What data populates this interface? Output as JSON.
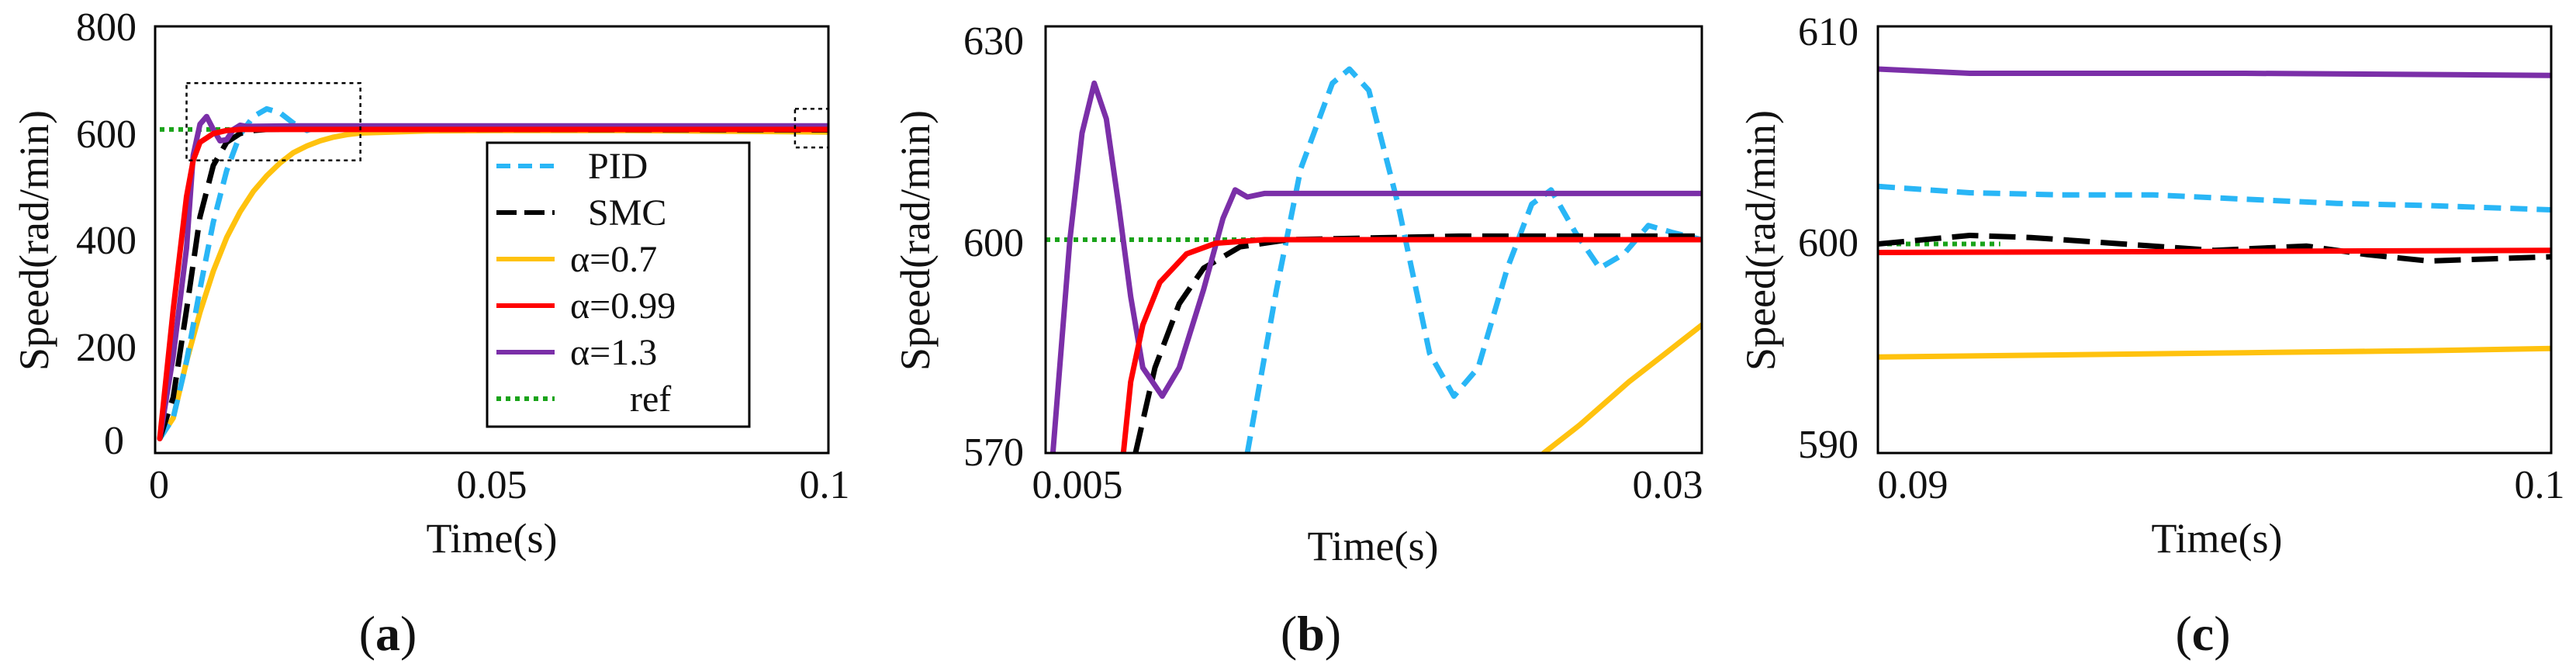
{
  "colors": {
    "PID": "#29B6F6",
    "SMC": "#000000",
    "a07": "#FFC20E",
    "a099": "#FF0000",
    "a13": "#7B2FA8",
    "ref": "#1AA31A"
  },
  "chart_data": [
    {
      "type": "line",
      "panel_label": "a",
      "xlabel": "Time(s)",
      "ylabel": "Speed(rad/min)",
      "xlim": [
        0,
        0.1
      ],
      "ylim": [
        0,
        800
      ],
      "xticks": [
        "0",
        "0.05",
        "0.1"
      ],
      "yticks": [
        "0",
        "200",
        "400",
        "600",
        "800"
      ],
      "legend_position": "center-right",
      "series": [
        {
          "name": "PID",
          "style": "dash",
          "color_key": "PID",
          "points": [
            [
              0,
              0
            ],
            [
              0.002,
              40
            ],
            [
              0.004,
              150
            ],
            [
              0.006,
              290
            ],
            [
              0.008,
              420
            ],
            [
              0.01,
              520
            ],
            [
              0.012,
              590
            ],
            [
              0.014,
              625
            ],
            [
              0.016,
              640
            ],
            [
              0.018,
              632
            ],
            [
              0.02,
              612
            ],
            [
              0.022,
              598
            ],
            [
              0.024,
              607
            ],
            [
              0.026,
              606
            ],
            [
              0.03,
              604
            ],
            [
              0.04,
              603
            ],
            [
              0.06,
              603
            ],
            [
              0.08,
              602
            ],
            [
              0.1,
              601
            ]
          ]
        },
        {
          "name": "SMC",
          "style": "longdash",
          "color_key": "SMC",
          "points": [
            [
              0,
              0
            ],
            [
              0.002,
              80
            ],
            [
              0.004,
              250
            ],
            [
              0.006,
              430
            ],
            [
              0.008,
              530
            ],
            [
              0.01,
              575
            ],
            [
              0.012,
              592
            ],
            [
              0.014,
              598
            ],
            [
              0.016,
              600
            ],
            [
              0.02,
              601
            ],
            [
              0.05,
              600
            ],
            [
              0.1,
              599
            ]
          ]
        },
        {
          "name": "α=0.7",
          "style": "solid",
          "color_key": "a07",
          "points": [
            [
              0,
              0
            ],
            [
              0.002,
              40
            ],
            [
              0.004,
              150
            ],
            [
              0.006,
              245
            ],
            [
              0.008,
              325
            ],
            [
              0.01,
              390
            ],
            [
              0.012,
              440
            ],
            [
              0.014,
              480
            ],
            [
              0.016,
              510
            ],
            [
              0.018,
              535
            ],
            [
              0.02,
              555
            ],
            [
              0.022,
              568
            ],
            [
              0.024,
              578
            ],
            [
              0.026,
              585
            ],
            [
              0.028,
              590
            ],
            [
              0.03,
              593
            ],
            [
              0.04,
              597
            ],
            [
              0.05,
              598
            ],
            [
              0.07,
              598
            ],
            [
              0.1,
              595
            ]
          ]
        },
        {
          "name": "α=0.99",
          "style": "solid",
          "color_key": "a099",
          "points": [
            [
              0,
              0
            ],
            [
              0.002,
              250
            ],
            [
              0.004,
              470
            ],
            [
              0.005,
              540
            ],
            [
              0.006,
              575
            ],
            [
              0.008,
              592
            ],
            [
              0.01,
              598
            ],
            [
              0.012,
              600
            ],
            [
              0.02,
              600
            ],
            [
              0.05,
              600
            ],
            [
              0.1,
              600
            ]
          ]
        },
        {
          "name": "α=1.3",
          "style": "solid",
          "color_key": "a13",
          "points": [
            [
              0,
              0
            ],
            [
              0.002,
              160
            ],
            [
              0.004,
              370
            ],
            [
              0.005,
              550
            ],
            [
              0.006,
              610
            ],
            [
              0.007,
              625
            ],
            [
              0.008,
              600
            ],
            [
              0.009,
              578
            ],
            [
              0.01,
              580
            ],
            [
              0.011,
              600
            ],
            [
              0.012,
              608
            ],
            [
              0.013,
              606
            ],
            [
              0.02,
              607
            ],
            [
              0.05,
              607
            ],
            [
              0.1,
              607
            ]
          ]
        },
        {
          "name": "ref",
          "style": "dot",
          "color_key": "ref",
          "points": [
            [
              0,
              600
            ],
            [
              0.1,
              600
            ]
          ]
        }
      ],
      "zoom_boxes": [
        {
          "x": [
            0.004,
            0.03
          ],
          "y": [
            540,
            690
          ]
        },
        {
          "x": [
            0.095,
            0.1
          ],
          "y": [
            565,
            640
          ]
        }
      ]
    },
    {
      "type": "line",
      "panel_label": "b",
      "xlabel": "Time(s)",
      "ylabel": "Speed(rad/min)",
      "xlim": [
        0.003,
        0.03
      ],
      "ylim": [
        570,
        630
      ],
      "xticks": [
        "0.005",
        "0.03"
      ],
      "xtick_values": [
        0.005,
        0.03
      ],
      "yticks": [
        "570",
        "600",
        "630"
      ],
      "series": [
        {
          "name": "PID",
          "style": "dash",
          "color_key": "PID",
          "points": [
            [
              0.0113,
              570
            ],
            [
              0.0125,
              593
            ],
            [
              0.0135,
              610
            ],
            [
              0.0148,
              622
            ],
            [
              0.0155,
              624
            ],
            [
              0.0163,
              621
            ],
            [
              0.0175,
              605
            ],
            [
              0.0188,
              584
            ],
            [
              0.0198,
              578
            ],
            [
              0.0208,
              582
            ],
            [
              0.022,
              596
            ],
            [
              0.023,
              605
            ],
            [
              0.0238,
              607
            ],
            [
              0.0248,
              601
            ],
            [
              0.0258,
              596
            ],
            [
              0.0268,
              598
            ],
            [
              0.0278,
              602
            ],
            [
              0.0288,
              601
            ],
            [
              0.03,
              600
            ]
          ]
        },
        {
          "name": "SMC",
          "style": "longdash",
          "color_key": "SMC",
          "points": [
            [
              0.0067,
              570
            ],
            [
              0.0075,
              582
            ],
            [
              0.0085,
              591
            ],
            [
              0.0095,
              596
            ],
            [
              0.011,
              599
            ],
            [
              0.013,
              600
            ],
            [
              0.02,
              600.5
            ],
            [
              0.03,
              600.5
            ]
          ]
        },
        {
          "name": "α=0.7",
          "style": "solid",
          "color_key": "a07",
          "points": [
            [
              0.0235,
              570
            ],
            [
              0.025,
              574
            ],
            [
              0.027,
              580
            ],
            [
              0.0285,
              584
            ],
            [
              0.03,
              588
            ]
          ]
        },
        {
          "name": "α=0.99",
          "style": "solid",
          "color_key": "a099",
          "points": [
            [
              0.0062,
              570
            ],
            [
              0.0065,
              580
            ],
            [
              0.007,
              588
            ],
            [
              0.0077,
              594
            ],
            [
              0.0088,
              598
            ],
            [
              0.01,
              599.5
            ],
            [
              0.012,
              600
            ],
            [
              0.03,
              600
            ]
          ]
        },
        {
          "name": "α=1.3",
          "style": "solid",
          "color_key": "a13",
          "points": [
            [
              0.0033,
              570
            ],
            [
              0.004,
              600
            ],
            [
              0.0045,
              615
            ],
            [
              0.005,
              622
            ],
            [
              0.0055,
              617
            ],
            [
              0.006,
              605
            ],
            [
              0.0065,
              592
            ],
            [
              0.007,
              582
            ],
            [
              0.0078,
              578
            ],
            [
              0.0085,
              582
            ],
            [
              0.0095,
              593
            ],
            [
              0.0103,
              603
            ],
            [
              0.0108,
              607
            ],
            [
              0.0113,
              606
            ],
            [
              0.012,
              606.5
            ],
            [
              0.03,
              606.5
            ]
          ]
        },
        {
          "name": "ref",
          "style": "dot",
          "color_key": "ref",
          "points": [
            [
              0.003,
              600
            ],
            [
              0.03,
              600
            ]
          ]
        }
      ]
    },
    {
      "type": "line",
      "panel_label": "c",
      "xlabel": "Time(s)",
      "ylabel": "Speed(rad/min)",
      "xlim": [
        0.089,
        0.1
      ],
      "ylim": [
        590,
        610
      ],
      "xticks": [
        "0.09",
        "0.1"
      ],
      "xtick_values": [
        0.09,
        0.1
      ],
      "yticks": [
        "590",
        "600",
        "610"
      ],
      "series": [
        {
          "name": "PID",
          "style": "dash",
          "color_key": "PID",
          "points": [
            [
              0.089,
              602.5
            ],
            [
              0.0905,
              602.2
            ],
            [
              0.092,
              602.1
            ],
            [
              0.0935,
              602.1
            ],
            [
              0.095,
              601.9
            ],
            [
              0.0965,
              601.7
            ],
            [
              0.098,
              601.6
            ],
            [
              0.1,
              601.4
            ]
          ]
        },
        {
          "name": "SMC",
          "style": "longdash",
          "color_key": "SMC",
          "points": [
            [
              0.089,
              599.8
            ],
            [
              0.0905,
              600.2
            ],
            [
              0.0915,
              600.1
            ],
            [
              0.093,
              599.8
            ],
            [
              0.0945,
              599.5
            ],
            [
              0.096,
              599.7
            ],
            [
              0.097,
              599.3
            ],
            [
              0.098,
              599.0
            ],
            [
              0.099,
              599.1
            ],
            [
              0.1,
              599.2
            ]
          ]
        },
        {
          "name": "α=0.7",
          "style": "solid",
          "color_key": "a07",
          "points": [
            [
              0.089,
              594.5
            ],
            [
              0.092,
              594.6
            ],
            [
              0.095,
              594.7
            ],
            [
              0.098,
              594.8
            ],
            [
              0.1,
              594.9
            ]
          ]
        },
        {
          "name": "α=0.99",
          "style": "solid",
          "color_key": "a099",
          "points": [
            [
              0.089,
              599.4
            ],
            [
              0.1,
              599.5
            ]
          ]
        },
        {
          "name": "α=1.3",
          "style": "solid",
          "color_key": "a13",
          "points": [
            [
              0.089,
              608.0
            ],
            [
              0.0905,
              607.8
            ],
            [
              0.095,
              607.8
            ],
            [
              0.1,
              607.7
            ]
          ]
        },
        {
          "name": "ref",
          "style": "dot",
          "color_key": "ref",
          "points": [
            [
              0.089,
              599.8
            ],
            [
              0.091,
              599.8
            ]
          ]
        }
      ]
    }
  ]
}
